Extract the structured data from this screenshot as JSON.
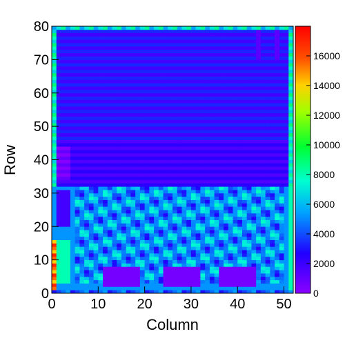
{
  "chart_data": {
    "type": "heatmap",
    "xlabel": "Column",
    "ylabel": "Row",
    "xlim": [
      0,
      52
    ],
    "ylim": [
      0,
      80
    ],
    "x_ticks": [
      0,
      10,
      20,
      30,
      40,
      50
    ],
    "y_ticks": [
      0,
      10,
      20,
      30,
      40,
      50,
      60,
      70,
      80
    ],
    "colorbar": {
      "zlim": [
        0,
        18000
      ],
      "ticks": [
        0,
        2000,
        4000,
        6000,
        8000,
        10000,
        12000,
        14000,
        16000
      ],
      "palette": "rainbow (violet → blue → cyan → green → yellow → red)"
    },
    "cell_grid": {
      "columns": 52,
      "rows": 80,
      "note": "approximate values estimated from colour"
    },
    "regions": [
      {
        "x": [
          0,
          52
        ],
        "y": [
          46,
          80
        ],
        "value": 2400,
        "desc": "upper band, alternating rows"
      },
      {
        "x": [
          0,
          52
        ],
        "y": [
          32,
          46
        ],
        "value": 1900,
        "desc": "middle band"
      },
      {
        "x": [
          1,
          4
        ],
        "y": [
          34,
          44
        ],
        "value": 500,
        "desc": "violet block left"
      },
      {
        "x": [
          0,
          52
        ],
        "y": [
          0,
          32
        ],
        "value": 5200,
        "desc": "lower band base"
      },
      {
        "x": [
          1,
          4
        ],
        "y": [
          20,
          31
        ],
        "value": 1800
      },
      {
        "x": [
          1,
          4
        ],
        "y": [
          3,
          16
        ],
        "value": 8000
      },
      {
        "x": [
          11,
          19
        ],
        "y": [
          2,
          8
        ],
        "value": 500,
        "desc": "violet pad 1"
      },
      {
        "x": [
          24,
          32
        ],
        "y": [
          2,
          8
        ],
        "value": 500,
        "desc": "violet pad 2"
      },
      {
        "x": [
          36,
          44
        ],
        "y": [
          2,
          8
        ],
        "value": 500,
        "desc": "violet pad 3"
      },
      {
        "x": [
          0,
          1
        ],
        "y": [
          0,
          16
        ],
        "value": 15000,
        "desc": "left edge hot column"
      },
      {
        "x": [
          51,
          52
        ],
        "y": [
          0,
          80
        ],
        "value": 8000,
        "desc": "right edge column"
      }
    ]
  }
}
